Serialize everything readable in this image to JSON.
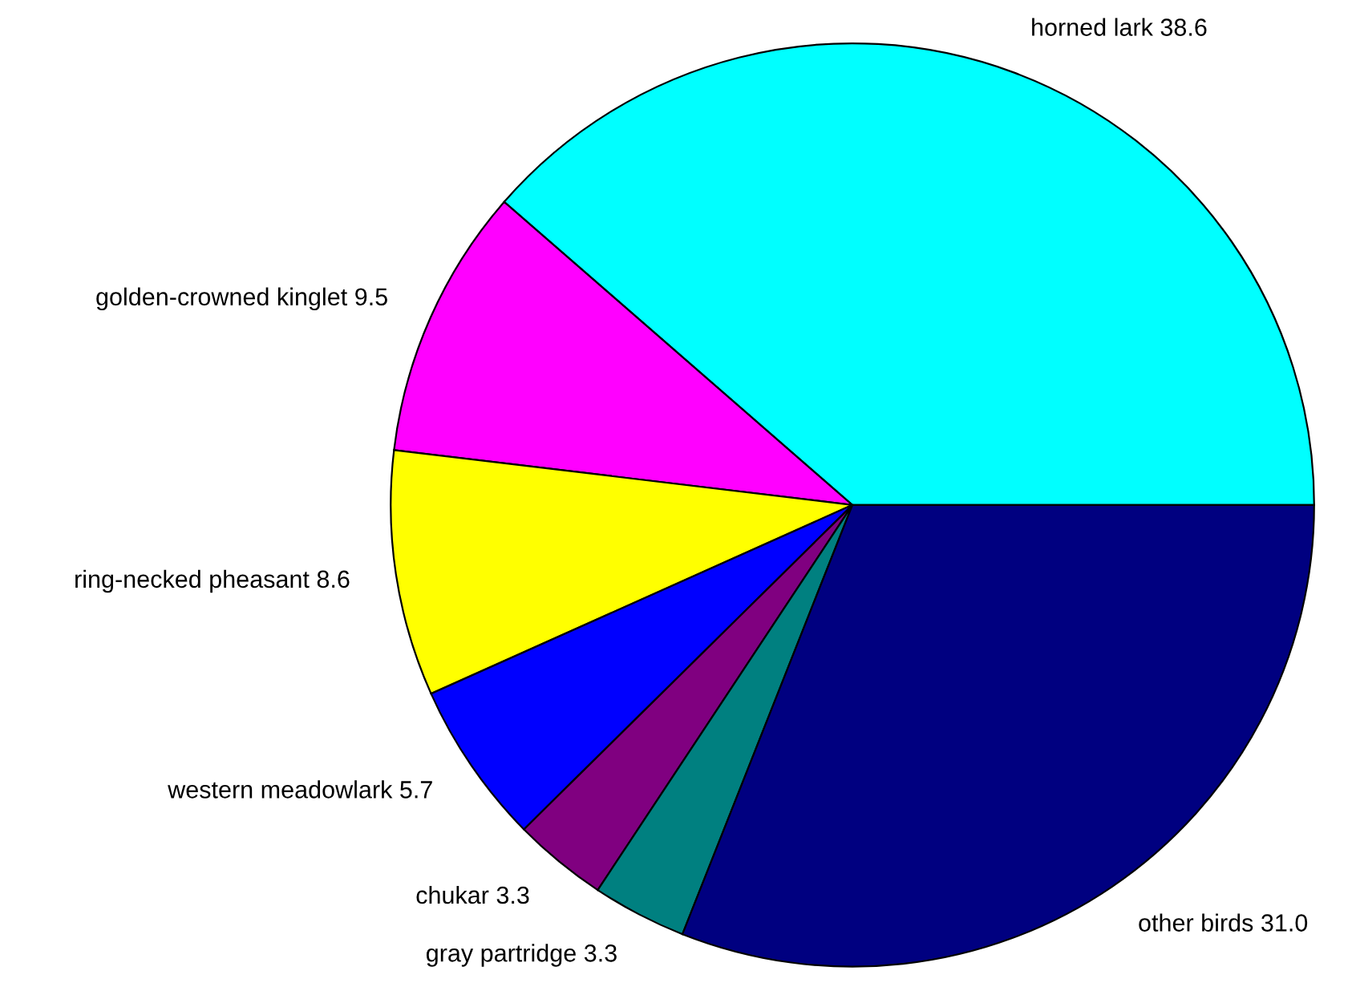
{
  "chart_data": {
    "type": "pie",
    "categories": [
      "horned lark",
      "golden-crowned kinglet",
      "ring-necked pheasant",
      "western meadowlark",
      "chukar",
      "gray partridge",
      "other birds"
    ],
    "values": [
      38.6,
      9.5,
      8.6,
      5.7,
      3.3,
      3.3,
      31.0
    ],
    "value_labels": [
      "38.6",
      "9.5",
      "8.6",
      "5.7",
      "3.3",
      "3.3",
      "31.0"
    ],
    "colors": [
      "#00ffff",
      "#ff00ff",
      "#ffff00",
      "#0000ff",
      "#800080",
      "#008080",
      "#000080"
    ],
    "legend": false
  }
}
